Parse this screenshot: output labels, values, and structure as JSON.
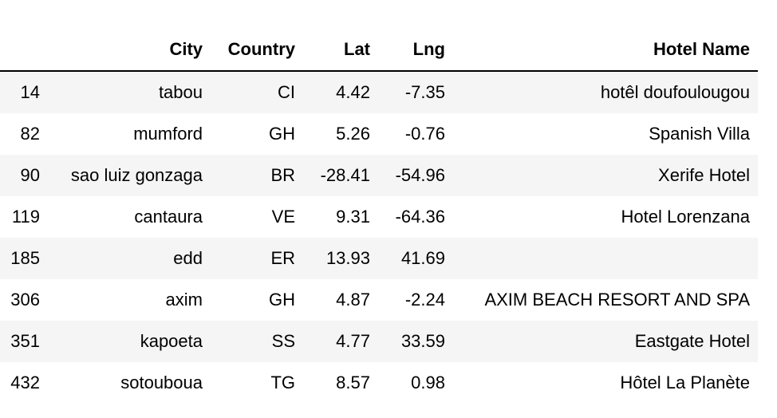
{
  "table": {
    "columns": [
      "",
      "City",
      "Country",
      "Lat",
      "Lng",
      "Hotel Name"
    ],
    "rows": [
      [
        "14",
        "tabou",
        "CI",
        "4.42",
        "-7.35",
        "hotêl doufoulougou"
      ],
      [
        "82",
        "mumford",
        "GH",
        "5.26",
        "-0.76",
        "Spanish Villa"
      ],
      [
        "90",
        "sao luiz gonzaga",
        "BR",
        "-28.41",
        "-54.96",
        "Xerife Hotel"
      ],
      [
        "119",
        "cantaura",
        "VE",
        "9.31",
        "-64.36",
        "Hotel Lorenzana"
      ],
      [
        "185",
        "edd",
        "ER",
        "13.93",
        "41.69",
        ""
      ],
      [
        "306",
        "axim",
        "GH",
        "4.87",
        "-2.24",
        "AXIM BEACH RESORT AND SPA"
      ],
      [
        "351",
        "kapoeta",
        "SS",
        "4.77",
        "33.59",
        "Eastgate Hotel"
      ],
      [
        "432",
        "sotouboua",
        "TG",
        "8.57",
        "0.98",
        "Hôtel La Planète"
      ]
    ]
  }
}
